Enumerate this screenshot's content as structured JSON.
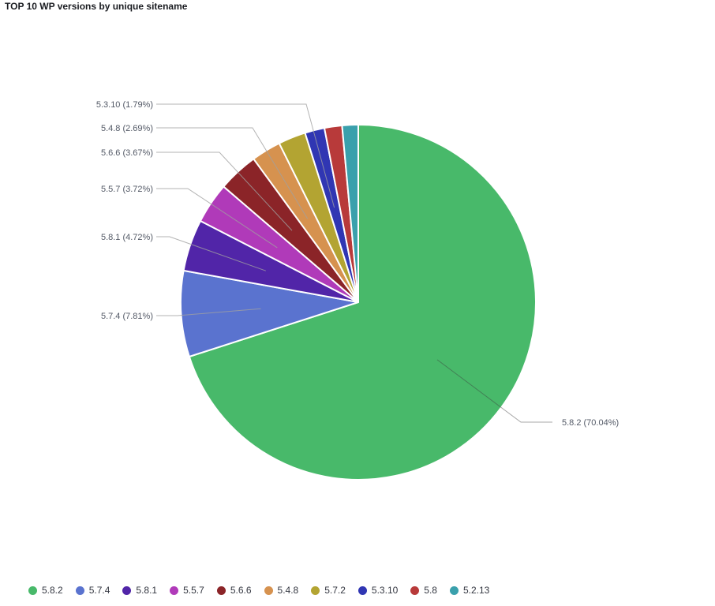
{
  "title": "TOP 10 WP versions by unique sitename",
  "chart_data": {
    "type": "pie",
    "title": "TOP 10 WP versions by unique sitename",
    "legend_position": "bottom-left",
    "slices": [
      {
        "label": "5.8.2",
        "value": 70.04,
        "display": "5.8.2 (70.04%)",
        "color": "#48b96a"
      },
      {
        "label": "5.7.4",
        "value": 7.81,
        "display": "5.7.4 (7.81%)",
        "color": "#5a73cf"
      },
      {
        "label": "5.8.1",
        "value": 4.72,
        "display": "5.8.1 (4.72%)",
        "color": "#5125a8"
      },
      {
        "label": "5.5.7",
        "value": 3.72,
        "display": "5.5.7 (3.72%)",
        "color": "#b03ab9"
      },
      {
        "label": "5.6.6",
        "value": 3.67,
        "display": "5.6.6 (3.67%)",
        "color": "#8b2428"
      },
      {
        "label": "5.4.8",
        "value": 2.69,
        "display": "5.4.8 (2.69%)",
        "color": "#d6924f"
      },
      {
        "label": "5.7.2",
        "value": 2.5,
        "display": "",
        "color": "#b3a432"
      },
      {
        "label": "5.3.10",
        "value": 1.79,
        "display": "5.3.10 (1.79%)",
        "color": "#3036b3"
      },
      {
        "label": "5.8",
        "value": 1.6,
        "display": "",
        "color": "#b83a3a"
      },
      {
        "label": "5.2.13",
        "value": 1.46,
        "display": "",
        "color": "#3aa0ac"
      }
    ]
  }
}
